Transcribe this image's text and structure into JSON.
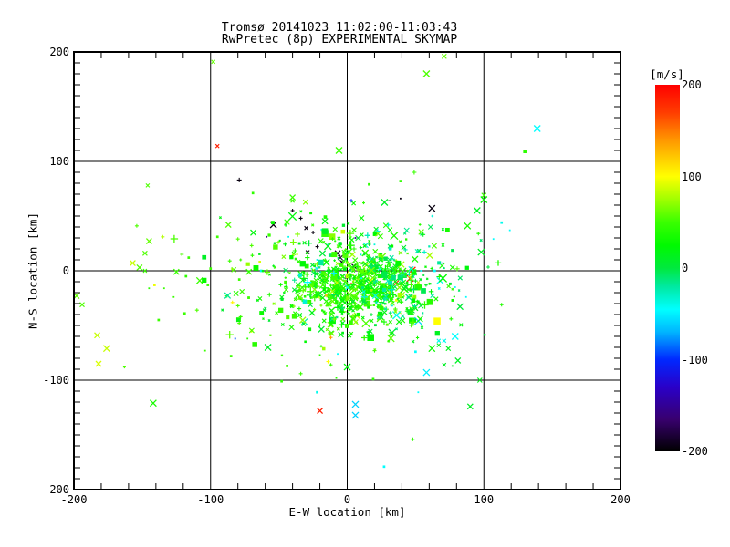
{
  "chart_data": {
    "type": "scatter",
    "title": "Tromsø 20141023 11:02:00-11:03:43",
    "subtitle": "RwPretec (8p) EXPERIMENTAL SKYMAP",
    "xlabel": "E-W location [km]",
    "ylabel": "N-S location [km]",
    "xlim": [
      -200,
      200
    ],
    "ylim": [
      -200,
      200
    ],
    "x_major_ticks": [
      -200,
      -100,
      0,
      100,
      200
    ],
    "y_major_ticks": [
      -200,
      -100,
      0,
      100,
      200
    ],
    "x_minor_step": 20,
    "y_minor_step": 10,
    "grid": "solid black lines at -100, 0, 100 on both axes",
    "marker": "x",
    "color_scale": {
      "label": "[m/s]",
      "min": -200,
      "max": 200,
      "ticks": [
        200,
        100,
        0,
        -100,
        -200
      ],
      "stops": [
        [
          200,
          "#ff0000"
        ],
        [
          170,
          "#ff3c00"
        ],
        [
          140,
          "#ff9600"
        ],
        [
          110,
          "#ffe600"
        ],
        [
          100,
          "#ffff00"
        ],
        [
          75,
          "#a0ff00"
        ],
        [
          50,
          "#3aff00"
        ],
        [
          25,
          "#00fa00"
        ],
        [
          0,
          "#00e93e"
        ],
        [
          -20,
          "#00e9a0"
        ],
        [
          -45,
          "#00ffff"
        ],
        [
          -70,
          "#00b4ff"
        ],
        [
          -100,
          "#0028ff"
        ],
        [
          -130,
          "#2a00c8"
        ],
        [
          -165,
          "#38006e"
        ],
        [
          -200,
          "#000000"
        ]
      ]
    },
    "points_format": [
      "x_km",
      "y_km",
      "velocity_ms",
      "half_size_px",
      "marker"
    ],
    "points": [
      [
        -98,
        191,
        60,
        2,
        "x"
      ],
      [
        -95,
        114,
        185,
        2,
        "x"
      ],
      [
        -79,
        83,
        -195,
        2.5,
        "+"
      ],
      [
        -146,
        78,
        55,
        2,
        "x"
      ],
      [
        -69,
        71,
        45,
        1.5,
        "."
      ],
      [
        58,
        180,
        55,
        3.5,
        "x"
      ],
      [
        -6,
        110,
        50,
        3.5,
        "x"
      ],
      [
        49,
        90,
        50,
        2.5,
        "+"
      ],
      [
        39,
        82,
        45,
        1.5,
        "."
      ],
      [
        16,
        79,
        45,
        1.5,
        "."
      ],
      [
        -40,
        67,
        50,
        3,
        "x"
      ],
      [
        71,
        196,
        60,
        2.5,
        "x"
      ],
      [
        139,
        130,
        -45,
        3.5,
        "x"
      ],
      [
        130,
        109,
        45,
        2,
        "."
      ],
      [
        100,
        69,
        50,
        2.5,
        "x"
      ],
      [
        -154,
        41,
        55,
        2,
        "+"
      ],
      [
        -145,
        27,
        60,
        3,
        "x"
      ],
      [
        -135,
        31,
        80,
        2,
        "+"
      ],
      [
        -157,
        7,
        85,
        3,
        "x"
      ],
      [
        -152,
        3,
        55,
        3,
        "x"
      ],
      [
        -148,
        0,
        50,
        2,
        "x"
      ],
      [
        -148,
        16,
        55,
        2.5,
        "x"
      ],
      [
        -121,
        15,
        55,
        2,
        "+"
      ],
      [
        -116,
        12,
        50,
        1.5,
        "."
      ],
      [
        -125,
        -1,
        50,
        3,
        "x"
      ],
      [
        -118,
        -5,
        45,
        1.5,
        "."
      ],
      [
        -108,
        -9,
        50,
        3.5,
        "x"
      ],
      [
        -102,
        -13,
        50,
        1.5,
        "."
      ],
      [
        -100,
        2,
        50,
        1.5,
        "."
      ],
      [
        -145,
        -16,
        45,
        1,
        "."
      ],
      [
        -141,
        -13,
        95,
        1.5,
        "."
      ],
      [
        -134,
        -16,
        50,
        1,
        "."
      ],
      [
        -127,
        -24,
        50,
        1,
        "."
      ],
      [
        -119,
        -39,
        50,
        1.5,
        "."
      ],
      [
        -110,
        -36,
        55,
        2,
        "+"
      ],
      [
        -138,
        -45,
        50,
        1.5,
        "."
      ],
      [
        -198,
        -23,
        60,
        3,
        "x"
      ],
      [
        -194,
        -31,
        55,
        2.5,
        "x"
      ],
      [
        -183,
        -59,
        85,
        3,
        "x"
      ],
      [
        -87,
        42,
        55,
        3,
        "x"
      ],
      [
        -95,
        31,
        50,
        1.5,
        "."
      ],
      [
        -80,
        29,
        55,
        2,
        "+"
      ],
      [
        -70,
        23,
        55,
        2,
        "+"
      ],
      [
        -86,
        9,
        50,
        2,
        "+"
      ],
      [
        -78,
        10,
        50,
        1.5,
        "+"
      ],
      [
        -83,
        1,
        55,
        2.5,
        "x"
      ],
      [
        -72,
        -1,
        50,
        3,
        "x"
      ],
      [
        -79,
        -8,
        50,
        1.5,
        "."
      ],
      [
        -77,
        -19,
        50,
        2.5,
        "x"
      ],
      [
        -88,
        -23,
        50,
        2,
        "+"
      ],
      [
        -84,
        -29,
        105,
        2,
        "+"
      ],
      [
        -80,
        -32,
        55,
        2,
        "+"
      ],
      [
        -78,
        -42,
        50,
        2,
        "+"
      ],
      [
        -79,
        -48,
        55,
        2,
        "+"
      ],
      [
        -70,
        -55,
        100,
        2,
        "+"
      ],
      [
        -82,
        -62,
        -90,
        1,
        "."
      ],
      [
        -73,
        -62,
        45,
        1,
        "."
      ],
      [
        100,
        65,
        25,
        3.5,
        "x"
      ],
      [
        95,
        55,
        10,
        3.5,
        "x"
      ],
      [
        88,
        41,
        35,
        3.5,
        "x"
      ],
      [
        113,
        44,
        -40,
        1.5,
        "."
      ],
      [
        119,
        37,
        -45,
        1,
        "."
      ],
      [
        96,
        34,
        40,
        2,
        "+"
      ],
      [
        107,
        29,
        -45,
        1,
        "."
      ],
      [
        98,
        17,
        10,
        3.5,
        "x"
      ],
      [
        70,
        7,
        -85,
        1,
        "."
      ],
      [
        77,
        3,
        35,
        2.5,
        "x"
      ],
      [
        68,
        -9,
        -40,
        3.5,
        "x"
      ],
      [
        79,
        -15,
        -45,
        1,
        "."
      ],
      [
        87,
        -24,
        -45,
        1,
        "."
      ],
      [
        113,
        -31,
        40,
        2,
        "+"
      ],
      [
        76,
        -44,
        40,
        2,
        "+"
      ],
      [
        79,
        -60,
        -45,
        3.5,
        "x"
      ],
      [
        71,
        -64,
        -40,
        2,
        "x"
      ],
      [
        67,
        -64,
        -40,
        2,
        "x"
      ],
      [
        -176,
        -71,
        85,
        3.5,
        "x"
      ],
      [
        -182,
        -85,
        90,
        3,
        "x"
      ],
      [
        -163,
        -88,
        55,
        1.5,
        "+"
      ],
      [
        -104,
        -73,
        50,
        1,
        "."
      ],
      [
        -85,
        -78,
        50,
        1.5,
        "."
      ],
      [
        -142,
        -121,
        35,
        3.5,
        "x"
      ],
      [
        -58,
        -70,
        10,
        3.5,
        "x"
      ],
      [
        -19,
        -69,
        45,
        1.5,
        "+"
      ],
      [
        -20,
        -77,
        45,
        1,
        "."
      ],
      [
        -7,
        -76,
        -45,
        1,
        "."
      ],
      [
        -44,
        -87,
        50,
        1.5,
        "."
      ],
      [
        -14,
        -83,
        100,
        2,
        "+"
      ],
      [
        -12,
        -86,
        50,
        2,
        "+"
      ],
      [
        -34,
        -94,
        50,
        2,
        "+"
      ],
      [
        0,
        -88,
        20,
        3.5,
        "x"
      ],
      [
        -8,
        -98,
        45,
        1,
        "."
      ],
      [
        -48,
        -101,
        45,
        1.5,
        "."
      ],
      [
        19,
        -99,
        45,
        1.5,
        "."
      ],
      [
        20,
        -73,
        45,
        2,
        "+"
      ],
      [
        50,
        -74,
        -45,
        1.5,
        "."
      ],
      [
        62,
        -71,
        30,
        3.5,
        "x"
      ],
      [
        58,
        -93,
        -50,
        3.5,
        "x"
      ],
      [
        52,
        -111,
        -45,
        1,
        "."
      ],
      [
        -22,
        -111,
        -40,
        1.5,
        "."
      ],
      [
        -20,
        -128,
        185,
        3,
        "x"
      ],
      [
        6,
        -122,
        -60,
        3.5,
        "x"
      ],
      [
        6,
        -132,
        -60,
        3.5,
        "x"
      ],
      [
        48,
        -154,
        45,
        2,
        "+"
      ],
      [
        27,
        -179,
        -45,
        1.5,
        "."
      ],
      [
        74,
        -71,
        15,
        2.5,
        "x"
      ],
      [
        67,
        -68,
        15,
        2,
        "x"
      ],
      [
        81,
        -82,
        10,
        3,
        "x"
      ],
      [
        71,
        -86,
        10,
        2,
        "x"
      ],
      [
        77,
        -87,
        10,
        1,
        "."
      ],
      [
        97,
        -100,
        15,
        2.5,
        "x"
      ],
      [
        90,
        -124,
        10,
        3,
        "x"
      ],
      [
        -54,
        42,
        -195,
        3.5,
        "x"
      ],
      [
        -40,
        55,
        -195,
        2,
        "+"
      ],
      [
        -34,
        48,
        -195,
        2,
        "+"
      ],
      [
        -30,
        39,
        -195,
        2,
        "x"
      ],
      [
        -25,
        35,
        -195,
        2,
        "+"
      ],
      [
        -22,
        22,
        -195,
        2,
        "+"
      ],
      [
        -29,
        17,
        -195,
        2,
        "x"
      ],
      [
        -7,
        16,
        -190,
        3,
        "x"
      ],
      [
        -5,
        12,
        -190,
        2.5,
        "x"
      ],
      [
        -4,
        8,
        -195,
        2,
        "x"
      ],
      [
        5,
        4,
        -190,
        2.5,
        "x"
      ],
      [
        62,
        57,
        -195,
        3.5,
        "x"
      ],
      [
        31,
        64,
        -200,
        1.5,
        "-"
      ],
      [
        39,
        66,
        -195,
        1,
        "."
      ],
      [
        3,
        64,
        -100,
        2,
        "+"
      ],
      [
        6,
        30,
        -150,
        1,
        "."
      ],
      [
        -59,
        31,
        -155,
        1,
        "."
      ],
      [
        -1,
        -6,
        -195,
        2,
        "|"
      ],
      [
        48,
        1,
        185,
        3,
        "x"
      ],
      [
        46,
        -7,
        190,
        3.5,
        "x"
      ],
      [
        36,
        -11,
        185,
        2.5,
        "x"
      ],
      [
        10,
        7,
        190,
        1.5,
        "-"
      ],
      [
        3,
        -12,
        185,
        1.5,
        "|"
      ],
      [
        36,
        -27,
        105,
        1.5,
        "."
      ],
      [
        -12,
        -61,
        135,
        2,
        "+"
      ],
      [
        0,
        8,
        130,
        1.5,
        "-"
      ],
      [
        -64,
        8,
        90,
        1.5,
        "."
      ],
      [
        -43,
        31,
        -40,
        1,
        "."
      ],
      [
        -14,
        24,
        -35,
        1,
        "."
      ],
      [
        -22,
        10,
        -40,
        1,
        "."
      ],
      [
        -63,
        0,
        -40,
        1.5,
        "."
      ],
      [
        52,
        -46,
        -60,
        4,
        "x"
      ],
      [
        54,
        0,
        -45,
        1,
        "."
      ],
      [
        64,
        0,
        -45,
        1.5,
        "."
      ],
      [
        -26,
        2,
        -40,
        1,
        "."
      ],
      [
        1,
        -1,
        105,
        1,
        "."
      ],
      [
        11,
        -18,
        108,
        1,
        "."
      ],
      [
        -9,
        -23,
        105,
        1,
        "."
      ],
      [
        20,
        24,
        -35,
        1,
        "."
      ],
      [
        27,
        -16,
        -30,
        1,
        "."
      ],
      [
        33,
        -32,
        -35,
        1,
        "."
      ],
      [
        -40,
        64,
        50,
        2,
        "x"
      ],
      [
        12,
        62,
        45,
        1.5,
        "+"
      ],
      [
        61,
        40,
        -5,
        2.5,
        "x"
      ]
    ],
    "dense_clusters": [
      {
        "seed": 11,
        "n": 430,
        "cx": 7,
        "cy": -14,
        "sx": 21,
        "sy": 14,
        "v_mean": 38,
        "v_sd": 16
      },
      {
        "seed": 22,
        "n": 230,
        "cx": -2,
        "cy": -8,
        "sx": 40,
        "sy": 26,
        "v_mean": 36,
        "v_sd": 26
      },
      {
        "seed": 33,
        "n": 120,
        "cx": 30,
        "cy": -4,
        "sx": 30,
        "sy": 24,
        "v_mean": -8,
        "v_sd": 20
      },
      {
        "seed": 44,
        "n": 50,
        "cx": -8,
        "cy": 27,
        "sx": 32,
        "sy": 14,
        "v_mean": 40,
        "v_sd": 22
      },
      {
        "seed": 55,
        "n": 70,
        "cx": 2,
        "cy": -45,
        "sx": 34,
        "sy": 14,
        "v_mean": 34,
        "v_sd": 20
      }
    ]
  }
}
